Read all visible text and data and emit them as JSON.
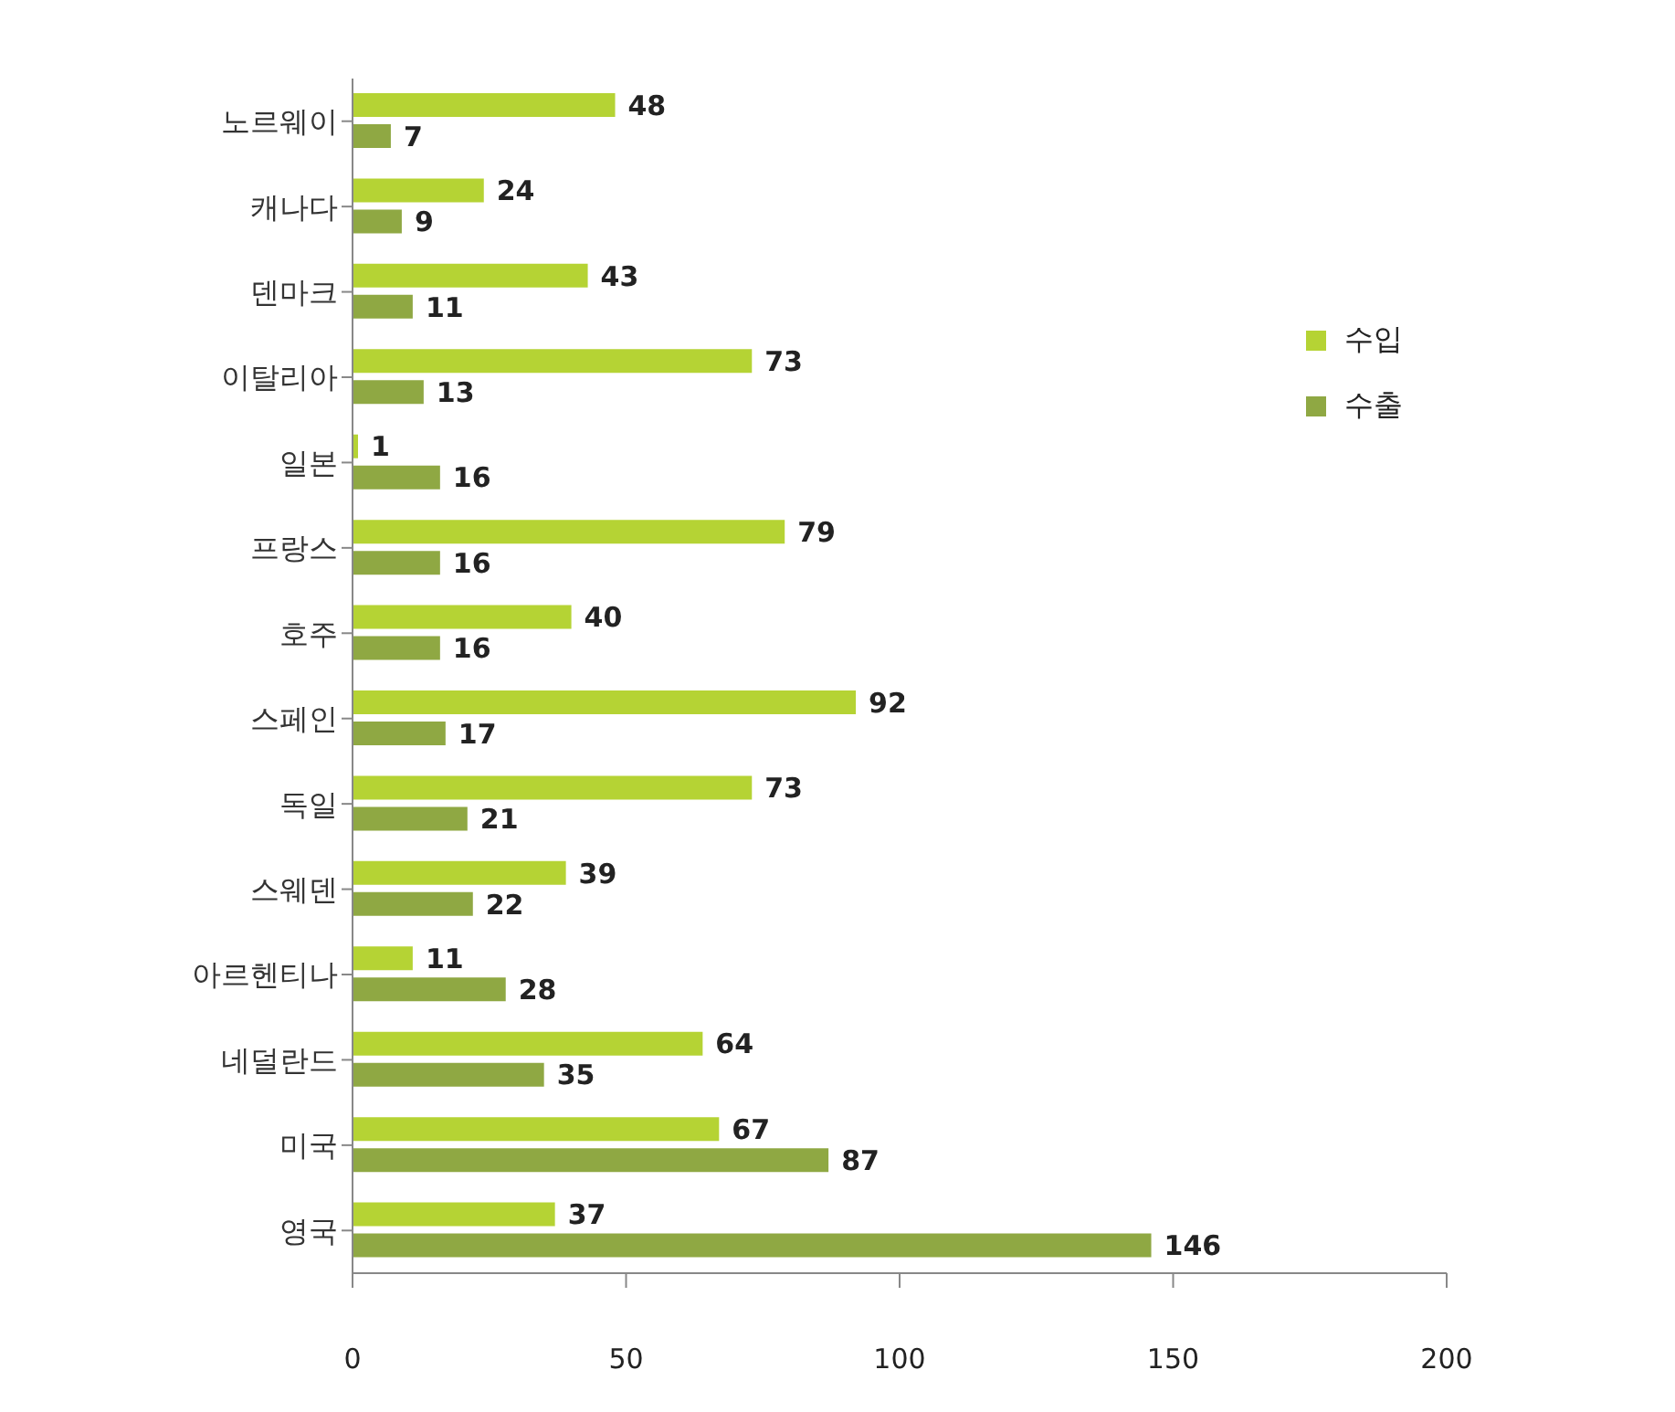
{
  "chart_data": {
    "type": "bar",
    "orientation": "horizontal",
    "categories": [
      "노르웨이",
      "캐나다",
      "덴마크",
      "이탈리아",
      "일본",
      "프랑스",
      "호주",
      "스페인",
      "독일",
      "스웨덴",
      "아르헨티나",
      "네덜란드",
      "미국",
      "영국"
    ],
    "series": [
      {
        "name": "수입",
        "color": "#b5d334",
        "values": [
          48,
          24,
          43,
          73,
          1,
          79,
          40,
          92,
          73,
          39,
          11,
          64,
          67,
          37
        ]
      },
      {
        "name": "수출",
        "color": "#8fa843",
        "values": [
          7,
          9,
          11,
          13,
          16,
          16,
          16,
          17,
          21,
          22,
          28,
          35,
          87,
          146
        ]
      }
    ],
    "xlim": [
      0,
      200
    ],
    "xticks": [
      0,
      50,
      100,
      150,
      200
    ],
    "data_labels": true,
    "legend": "top right",
    "grid": false
  }
}
